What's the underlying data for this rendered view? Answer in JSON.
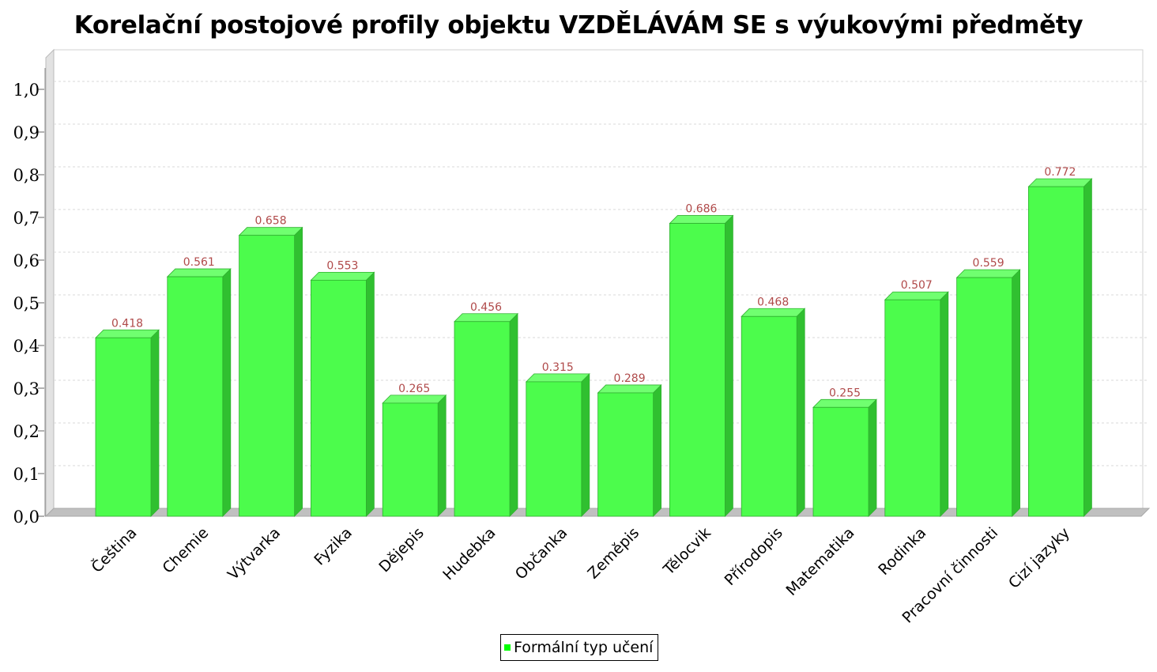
{
  "chart_data": {
    "type": "bar",
    "title": "Korelační postojové profily objektu VZDĚLÁVÁM SE s výukovými předměty",
    "categories": [
      "Čeština",
      "Chemie",
      "Výtvarka",
      "Fyzika",
      "Dějepis",
      "Hudebka",
      "Občanka",
      "Zeměpis",
      "Tělocvik",
      "Přírodopis",
      "Matematika",
      "Rodinka",
      "Pracovní činnosti",
      "Cizí jazyky"
    ],
    "series": [
      {
        "name": "Formální typ učení",
        "values": [
          0.418,
          0.561,
          0.658,
          0.553,
          0.265,
          0.456,
          0.315,
          0.289,
          0.686,
          0.468,
          0.255,
          0.507,
          0.559,
          0.772
        ],
        "labels": [
          "0.418",
          "0.561",
          "0.658",
          "0.553",
          "0.265",
          "0.456",
          "0.315",
          "0.289",
          "0.686",
          "0.468",
          "0.255",
          "0.507",
          "0.559",
          "0.772"
        ]
      }
    ],
    "yticks": [
      "0,0",
      "0,1",
      "0,2",
      "0,3",
      "0,4",
      "0,5",
      "0,6",
      "0,7",
      "0,8",
      "0,9",
      "1,0"
    ],
    "ylim": [
      0,
      1.07
    ],
    "grid": true,
    "legend_position": "bottom",
    "colors": {
      "bar_front": "#4cfc4c",
      "bar_side": "#30c030",
      "bar_top": "#70ff70",
      "bar_edge": "#2fb02f",
      "value_label": "#b04a4a",
      "grid": "#d9d9d9",
      "floor": "#c0c0c0",
      "wall": "#e2e2e2",
      "legend_swatch": "#00ff00"
    }
  }
}
